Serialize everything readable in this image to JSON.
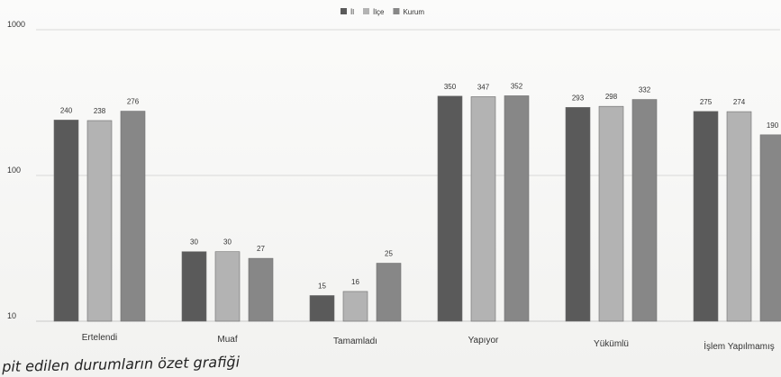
{
  "chart_data": {
    "type": "bar",
    "scale": "log",
    "ylim": [
      10,
      1000
    ],
    "yticks": [
      "1000",
      "100",
      "10"
    ],
    "grid": true,
    "legend_position": "top-center",
    "categories": [
      "Ertelendi",
      "Muaf",
      "Tamamladı",
      "Yapıyor",
      "Yükümlü",
      "İşlem Yapılmamış"
    ],
    "series": [
      {
        "name": "İl",
        "color": "#5a5a5a",
        "values": [
          240,
          30,
          15,
          350,
          293,
          275
        ]
      },
      {
        "name": "İlçe",
        "color": "#b3b3b3",
        "values": [
          238,
          30,
          16,
          347,
          298,
          274
        ]
      },
      {
        "name": "Kurum",
        "color": "#878787",
        "values": [
          276,
          27,
          25,
          352,
          332,
          190
        ]
      }
    ],
    "data_labels": [
      [
        "240",
        "238",
        "276"
      ],
      [
        "30",
        "30",
        "27"
      ],
      [
        "15",
        "16",
        "25"
      ],
      [
        "350",
        "347",
        "352"
      ],
      [
        "293",
        "298",
        "332"
      ],
      [
        "275",
        "274",
        "190"
      ]
    ]
  },
  "caption": "pit edilen durumların özet grafiği"
}
